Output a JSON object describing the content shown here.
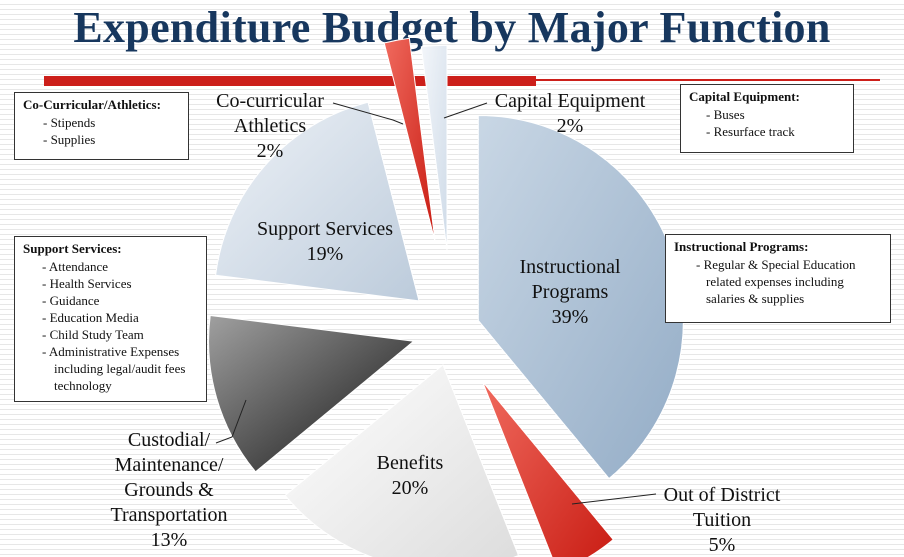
{
  "title": "Expenditure Budget by Major Function",
  "colors": {
    "title": "#17375e",
    "accent_rule": "#cc1f1a",
    "instructional": "#a9bfd4",
    "support": "#d6e0ea",
    "custodial": "#3a3a3a",
    "benefits": "#f2f2f2",
    "out_of_district": "#e02a20",
    "co_curricular": "#e02a20",
    "capital": "#e4ecf4"
  },
  "chart_data": {
    "type": "pie",
    "title": "Expenditure Budget by Major Function",
    "slices": [
      {
        "label": "Instructional Programs",
        "label_lines": [
          "Instructional",
          "Programs",
          "39%"
        ],
        "value": 39
      },
      {
        "label": "Out of District Tuition",
        "label_lines": [
          "Out of District",
          "Tuition",
          "5%"
        ],
        "value": 5
      },
      {
        "label": "Benefits",
        "label_lines": [
          "Benefits",
          "20%"
        ],
        "value": 20
      },
      {
        "label": "Custodial/ Maintenance/ Grounds & Transportation",
        "label_lines": [
          "Custodial/",
          "Maintenance/",
          "Grounds &",
          "Transportation",
          "13%"
        ],
        "value": 13
      },
      {
        "label": "Support Services",
        "label_lines": [
          "Support Services",
          "19%"
        ],
        "value": 19
      },
      {
        "label": "Co-curricular Athletics",
        "label_lines": [
          "Co-curricular",
          "Athletics",
          "2%"
        ],
        "value": 2
      },
      {
        "label": "Capital Equipment",
        "label_lines": [
          "Capital Equipment",
          "2%"
        ],
        "value": 2
      }
    ],
    "unit": "%",
    "exploded": true
  },
  "callouts": {
    "co_curricular": {
      "heading": "Co-Curricular/Athletics:",
      "items": [
        "- Stipends",
        "- Supplies"
      ]
    },
    "capital": {
      "heading": "Capital Equipment:",
      "items": [
        "- Buses",
        "- Resurface track"
      ]
    },
    "support": {
      "heading": "Support Services:",
      "items": [
        "- Attendance",
        "- Health Services",
        "- Guidance",
        "- Education Media",
        "- Child Study Team",
        "- Administrative Expenses",
        "including legal/audit fees",
        "technology"
      ]
    },
    "instructional": {
      "heading": "Instructional Programs:",
      "items": [
        "- Regular & Special Education",
        "related expenses including",
        "salaries & supplies"
      ]
    }
  }
}
